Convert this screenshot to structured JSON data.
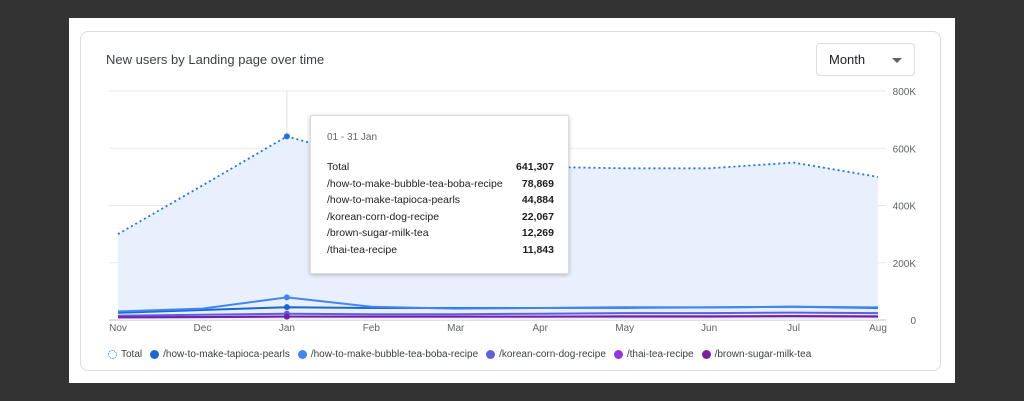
{
  "card": {
    "title": "New users by Landing page over time",
    "period_select": {
      "value": "Month"
    }
  },
  "chart_data": {
    "type": "line",
    "title": "New users by Landing page over time",
    "categories": [
      "Nov",
      "Dec",
      "Jan",
      "Feb",
      "Mar",
      "Apr",
      "May",
      "Jun",
      "Jul",
      "Aug"
    ],
    "yticks": [
      "0",
      "200K",
      "400K",
      "600K",
      "800K"
    ],
    "ylim": [
      0,
      800000
    ],
    "grid": true,
    "legend_position": "bottom-left",
    "series": [
      {
        "name": "Total",
        "style": "dotted-area",
        "color": "#1a73e8",
        "fill": "#e8f0fe",
        "values": [
          300000,
          470000,
          641307,
          560000,
          545000,
          535000,
          530000,
          530000,
          550000,
          500000
        ]
      },
      {
        "name": "/how-to-make-tapioca-pearls",
        "color": "#1967d2",
        "values": [
          25000,
          35000,
          44884,
          42000,
          42000,
          42000,
          44000,
          44000,
          46000,
          42000
        ]
      },
      {
        "name": "/how-to-make-bubble-tea-boba-recipe",
        "color": "#4285f4",
        "values": [
          30000,
          40000,
          78869,
          46000,
          40000,
          42000,
          42000,
          44000,
          46000,
          44000
        ]
      },
      {
        "name": "/korean-corn-dog-recipe",
        "color": "#5b5fe0",
        "values": [
          15000,
          18000,
          22067,
          20000,
          20000,
          22000,
          24000,
          24000,
          26000,
          24000
        ]
      },
      {
        "name": "/thai-tea-recipe",
        "color": "#9334e6",
        "values": [
          10000,
          10500,
          11843,
          12000,
          12000,
          12000,
          13000,
          13000,
          14000,
          13000
        ]
      },
      {
        "name": "/brown-sugar-milk-tea",
        "color": "#7b1fa2",
        "values": [
          9000,
          10000,
          12269,
          12000,
          12000,
          12000,
          12000,
          12000,
          13000,
          12000
        ]
      }
    ]
  },
  "tooltip": {
    "date": "01 - 31 Jan",
    "rows": [
      {
        "label": "Total",
        "value": "641,307"
      },
      {
        "label": "/how-to-make-bubble-tea-boba-recipe",
        "value": "78,869"
      },
      {
        "label": "/how-to-make-tapioca-pearls",
        "value": "44,884"
      },
      {
        "label": "/korean-corn-dog-recipe",
        "value": "22,067"
      },
      {
        "label": "/brown-sugar-milk-tea",
        "value": "12,269"
      },
      {
        "label": "/thai-tea-recipe",
        "value": "11,843"
      }
    ]
  },
  "legend": [
    {
      "label": "Total",
      "color": "#1a73e8",
      "style": "dotted"
    },
    {
      "label": "/how-to-make-tapioca-pearls",
      "color": "#1967d2"
    },
    {
      "label": "/how-to-make-bubble-tea-boba-recipe",
      "color": "#4285f4"
    },
    {
      "label": "/korean-corn-dog-recipe",
      "color": "#5b5fe0"
    },
    {
      "label": "/thai-tea-recipe",
      "color": "#9334e6"
    },
    {
      "label": "/brown-sugar-milk-tea",
      "color": "#7b1fa2"
    }
  ]
}
